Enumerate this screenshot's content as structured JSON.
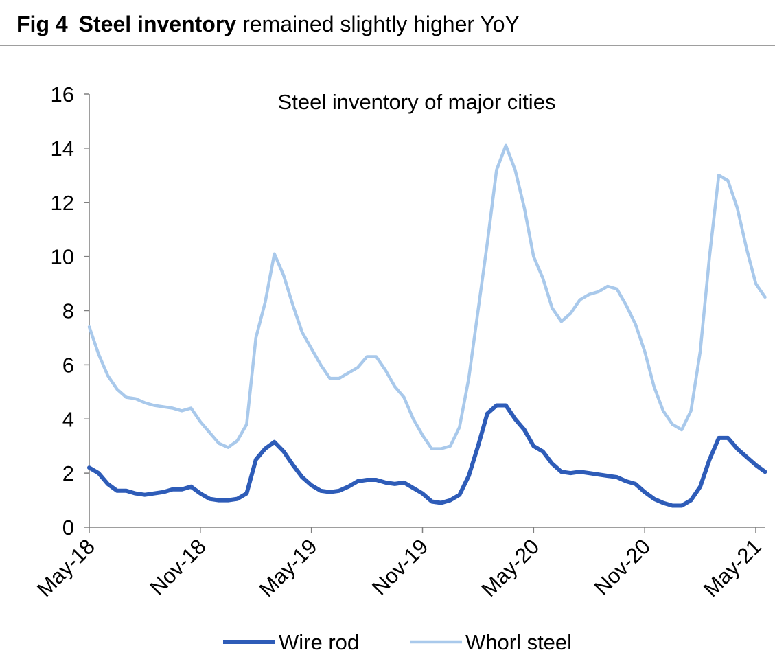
{
  "figure_title": {
    "label": "Fig 4",
    "bold": "Steel inventory",
    "text": "remained slightly higher YoY"
  },
  "chart_data": {
    "type": "line",
    "title": "Steel inventory of major cities",
    "categories": [
      "May-18",
      null,
      null,
      null,
      null,
      null,
      null,
      null,
      null,
      null,
      null,
      null,
      "Nov-18",
      null,
      null,
      null,
      null,
      null,
      null,
      null,
      null,
      null,
      null,
      null,
      "May-19",
      null,
      null,
      null,
      null,
      null,
      null,
      null,
      null,
      null,
      null,
      null,
      "Nov-19",
      null,
      null,
      null,
      null,
      null,
      null,
      null,
      null,
      null,
      null,
      null,
      "May-20",
      null,
      null,
      null,
      null,
      null,
      null,
      null,
      null,
      null,
      null,
      null,
      "Nov-20",
      null,
      null,
      null,
      null,
      null,
      null,
      null,
      null,
      null,
      null,
      null,
      "May-21",
      null
    ],
    "series": [
      {
        "name": "Wire rod",
        "color": "#2e5cb8",
        "values": [
          2.2,
          2.0,
          1.6,
          1.35,
          1.35,
          1.25,
          1.2,
          1.25,
          1.3,
          1.4,
          1.4,
          1.5,
          1.25,
          1.05,
          1.0,
          1.0,
          1.05,
          1.25,
          2.5,
          2.9,
          3.15,
          2.8,
          2.3,
          1.85,
          1.55,
          1.35,
          1.3,
          1.35,
          1.5,
          1.7,
          1.75,
          1.75,
          1.65,
          1.6,
          1.65,
          1.45,
          1.25,
          0.95,
          0.9,
          1.0,
          1.2,
          1.9,
          3.0,
          4.2,
          4.5,
          4.5,
          4.0,
          3.6,
          3.0,
          2.8,
          2.35,
          2.05,
          2.0,
          2.05,
          2.0,
          1.95,
          1.9,
          1.85,
          1.7,
          1.6,
          1.3,
          1.05,
          0.9,
          0.8,
          0.8,
          1.0,
          1.5,
          2.5,
          3.3,
          3.3,
          2.9,
          2.6,
          2.3,
          2.05
        ]
      },
      {
        "name": "Whorl steel",
        "color": "#a9c9eb",
        "values": [
          7.4,
          6.4,
          5.6,
          5.1,
          4.8,
          4.75,
          4.6,
          4.5,
          4.45,
          4.4,
          4.3,
          4.4,
          3.9,
          3.5,
          3.1,
          2.95,
          3.2,
          3.8,
          7.0,
          8.3,
          10.1,
          9.3,
          8.2,
          7.2,
          6.6,
          6.0,
          5.5,
          5.5,
          5.7,
          5.9,
          6.3,
          6.3,
          5.8,
          5.2,
          4.8,
          4.0,
          3.4,
          2.9,
          2.9,
          3.0,
          3.7,
          5.5,
          8.0,
          10.5,
          13.2,
          14.1,
          13.2,
          11.8,
          10.0,
          9.2,
          8.1,
          7.6,
          7.9,
          8.4,
          8.6,
          8.7,
          8.9,
          8.8,
          8.2,
          7.5,
          6.5,
          5.2,
          4.3,
          3.8,
          3.6,
          4.3,
          6.5,
          10.0,
          13.0,
          12.8,
          11.8,
          10.3,
          9.0,
          8.5
        ]
      }
    ],
    "ylim": [
      0,
      16
    ],
    "yticks": [
      0,
      2,
      4,
      6,
      8,
      10,
      12,
      14,
      16
    ],
    "grid": false
  }
}
